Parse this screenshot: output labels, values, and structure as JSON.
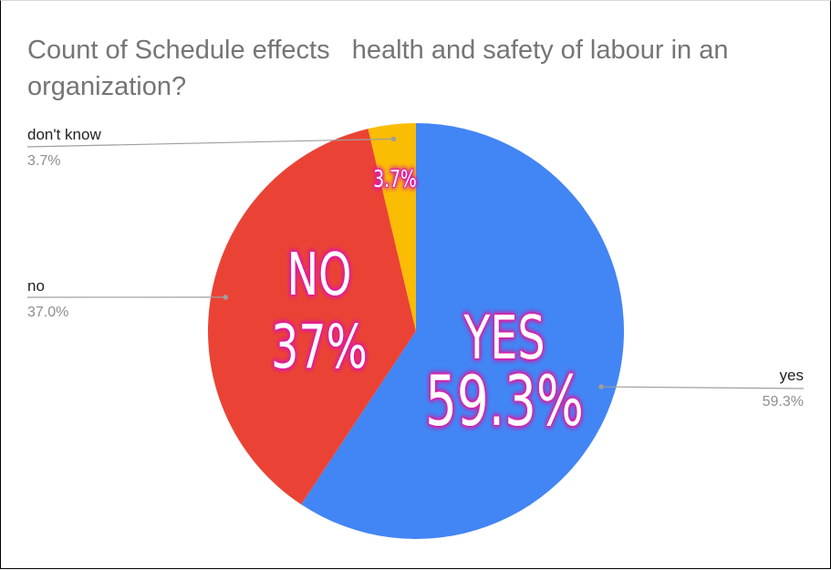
{
  "chart_data": {
    "type": "pie",
    "title": "Count of Schedule effects   health and safety of labour in an organization?",
    "slices": [
      {
        "name": "yes",
        "value": 59.3,
        "label": "59.3%",
        "color": "#4285f4"
      },
      {
        "name": "no",
        "value": 37.0,
        "label": "37.0%",
        "color": "#ea4335"
      },
      {
        "name": "don't know",
        "value": 3.7,
        "label": "3.7%",
        "color": "#fbbc04"
      }
    ],
    "annotations": [
      {
        "lines": [
          "YES",
          "59.3%"
        ],
        "glow": "#e01ba3"
      },
      {
        "lines": [
          "NO",
          "37%"
        ],
        "glow": "#e01ba3"
      },
      {
        "lines": [
          "3.7%"
        ],
        "glow": "#e01ba3"
      }
    ],
    "legend": "leader-lines",
    "start_angle_deg": 0,
    "direction": "clockwise"
  }
}
